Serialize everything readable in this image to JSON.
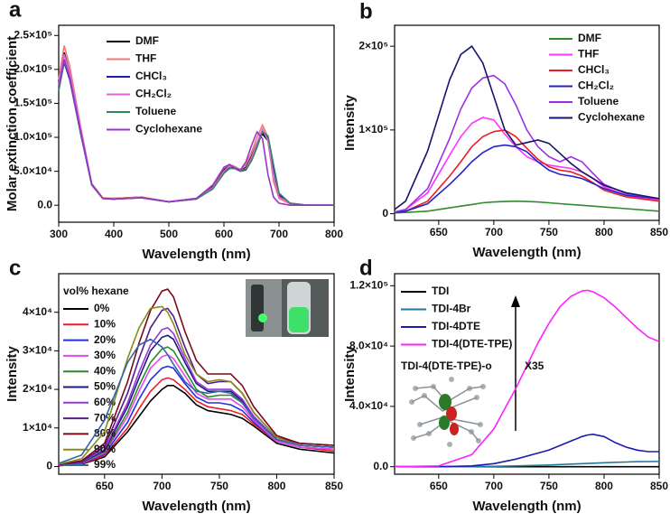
{
  "chart_data": [
    {
      "type": "line",
      "panel": "a",
      "xlabel": "Wavelength (nm)",
      "ylabel": "Molar extinction coefficient",
      "xlim": [
        300,
        800
      ],
      "xticks": [
        300,
        400,
        500,
        600,
        700,
        800
      ],
      "ylim": [
        -25000,
        265000
      ],
      "yticks": [
        {
          "value": 0,
          "label": "0.0"
        },
        {
          "value": 50000,
          "label": "5.0×10⁴"
        },
        {
          "value": 100000,
          "label": "1.0×10⁵"
        },
        {
          "value": 150000,
          "label": "1.5×10⁵"
        },
        {
          "value": 200000,
          "label": "2.0×10⁵"
        },
        {
          "value": 250000,
          "label": "2.5×10⁵"
        }
      ],
      "x": [
        300,
        310,
        320,
        340,
        360,
        380,
        400,
        450,
        500,
        550,
        580,
        600,
        610,
        620,
        630,
        640,
        650,
        660,
        670,
        680,
        690,
        700,
        720,
        750,
        800
      ],
      "series": [
        {
          "name": "DMF",
          "color": "#000000",
          "values": [
            180000,
            225000,
            195000,
            110000,
            30000,
            10000,
            10000,
            12000,
            5000,
            10000,
            28000,
            52000,
            58000,
            55000,
            50000,
            56000,
            72000,
            92000,
            105000,
            95000,
            40000,
            12000,
            3000,
            0,
            0
          ]
        },
        {
          "name": "THF",
          "color": "#f07878",
          "values": [
            185000,
            235000,
            205000,
            115000,
            32000,
            11000,
            10000,
            12000,
            5000,
            10000,
            30000,
            55000,
            60000,
            57000,
            52000,
            60000,
            78000,
            100000,
            118000,
            100000,
            35000,
            10000,
            2000,
            0,
            0
          ]
        },
        {
          "name": "CHCl₃",
          "color": "#1c1ca8",
          "values": [
            170000,
            210000,
            185000,
            105000,
            30000,
            10000,
            9000,
            11000,
            5000,
            9000,
            25000,
            48000,
            55000,
            54000,
            50000,
            52000,
            66000,
            88000,
            108000,
            100000,
            55000,
            15000,
            3000,
            0,
            0
          ]
        },
        {
          "name": "CH₂Cl₂",
          "color": "#e066d6",
          "values": [
            178000,
            222000,
            195000,
            112000,
            31000,
            10000,
            9000,
            11000,
            5000,
            9000,
            26000,
            50000,
            58000,
            56000,
            50000,
            54000,
            70000,
            92000,
            112000,
            95000,
            42000,
            12000,
            3000,
            0,
            0
          ]
        },
        {
          "name": "Toluene",
          "color": "#2e8b57",
          "values": [
            168000,
            212000,
            188000,
            106000,
            30000,
            10000,
            9000,
            11000,
            5000,
            9000,
            24000,
            47000,
            54000,
            54000,
            51000,
            53000,
            65000,
            85000,
            108000,
            102000,
            60000,
            18000,
            3000,
            0,
            0
          ]
        },
        {
          "name": "Cyclohexane",
          "color": "#9933cc",
          "values": [
            175000,
            215000,
            188000,
            108000,
            31000,
            10000,
            9000,
            11000,
            5000,
            10000,
            30000,
            56000,
            60000,
            55000,
            52000,
            64000,
            88000,
            108000,
            98000,
            45000,
            12000,
            3000,
            0,
            0,
            0
          ]
        }
      ]
    },
    {
      "type": "line",
      "panel": "b",
      "xlabel": "Wavelength (nm)",
      "ylabel": "Intensity",
      "xlim": [
        610,
        850
      ],
      "xticks": [
        650,
        700,
        750,
        800,
        850
      ],
      "ylim": [
        -8000,
        225000
      ],
      "yticks": [
        0,
        {
          "value": 100000,
          "label": "1×10⁵"
        },
        {
          "value": 200000,
          "label": "2×10⁵"
        }
      ],
      "x": [
        610,
        620,
        640,
        660,
        670,
        680,
        690,
        700,
        710,
        720,
        730,
        740,
        750,
        760,
        770,
        780,
        790,
        800,
        820,
        850
      ],
      "series": [
        {
          "name": "DMF",
          "color": "#2e8b2e",
          "values": [
            1000,
            1500,
            3000,
            7000,
            9000,
            11000,
            13000,
            14000,
            14500,
            15000,
            14500,
            14000,
            13000,
            12000,
            11000,
            10000,
            9000,
            8000,
            6000,
            3000
          ]
        },
        {
          "name": "THF",
          "color": "#ff33ff",
          "values": [
            2000,
            5000,
            25000,
            70000,
            92000,
            108000,
            115000,
            112000,
            95000,
            80000,
            68000,
            62000,
            58000,
            56000,
            54000,
            50000,
            42000,
            32000,
            22000,
            16000
          ]
        },
        {
          "name": "CHCl₃",
          "color": "#ee1c24",
          "values": [
            1500,
            3000,
            15000,
            45000,
            62000,
            80000,
            92000,
            98000,
            100000,
            92000,
            78000,
            65000,
            56000,
            52000,
            50000,
            45000,
            37000,
            28000,
            20000,
            15000
          ]
        },
        {
          "name": "CH₂Cl₂",
          "color": "#2222cc",
          "values": [
            1500,
            3000,
            12000,
            35000,
            48000,
            62000,
            73000,
            80000,
            82000,
            80000,
            74000,
            62000,
            52000,
            47000,
            45000,
            42000,
            36000,
            30000,
            22000,
            18000
          ]
        },
        {
          "name": "Toluene",
          "color": "#9b30e0",
          "values": [
            2000,
            5000,
            30000,
            90000,
            125000,
            150000,
            162000,
            165000,
            155000,
            130000,
            100000,
            80000,
            68000,
            62000,
            68000,
            62000,
            48000,
            35000,
            24000,
            18000
          ]
        },
        {
          "name": "Cyclohexane",
          "color": "#14146e",
          "values": [
            5000,
            15000,
            75000,
            160000,
            190000,
            200000,
            180000,
            140000,
            100000,
            82000,
            85000,
            88000,
            84000,
            72000,
            60000,
            50000,
            42000,
            34000,
            25000,
            18000
          ]
        }
      ]
    },
    {
      "type": "line",
      "panel": "c",
      "xlabel": "Wavelength (nm)",
      "ylabel": "Intensity",
      "legend_title": "vol% hexane",
      "xlim": [
        610,
        850
      ],
      "xticks": [
        650,
        700,
        750,
        800,
        850
      ],
      "ylim": [
        -2000,
        50000
      ],
      "yticks": [
        0,
        {
          "value": 10000,
          "label": "1×10⁴"
        },
        {
          "value": 20000,
          "label": "2×10⁴"
        },
        {
          "value": 30000,
          "label": "3×10⁴"
        },
        {
          "value": 40000,
          "label": "4×10⁴"
        }
      ],
      "x": [
        610,
        630,
        650,
        670,
        680,
        690,
        700,
        705,
        710,
        720,
        730,
        740,
        750,
        760,
        770,
        780,
        800,
        820,
        850
      ],
      "series": [
        {
          "name": "0%",
          "color": "#000000",
          "values": [
            200,
            600,
            2500,
            9000,
            13000,
            17000,
            20000,
            21000,
            21000,
            19000,
            16000,
            14500,
            14000,
            13500,
            12500,
            10500,
            6000,
            4500,
            3500
          ]
        },
        {
          "name": "10%",
          "color": "#ee1c24",
          "values": [
            200,
            700,
            2800,
            10000,
            15000,
            19500,
            22500,
            23000,
            22500,
            20000,
            17000,
            15500,
            15000,
            14500,
            13500,
            11000,
            6500,
            5000,
            4000
          ]
        },
        {
          "name": "20%",
          "color": "#2233dd",
          "values": [
            250,
            800,
            3200,
            11500,
            17500,
            22500,
            25500,
            26000,
            25500,
            21500,
            18000,
            16500,
            16500,
            16000,
            14500,
            11500,
            6500,
            5000,
            4500
          ]
        },
        {
          "name": "30%",
          "color": "#ee44ee",
          "values": [
            300,
            900,
            3500,
            13000,
            19500,
            25500,
            28500,
            29000,
            28000,
            23500,
            19000,
            17500,
            17500,
            17500,
            15500,
            12000,
            6500,
            5000,
            4500
          ]
        },
        {
          "name": "40%",
          "color": "#2a8a2a",
          "values": [
            300,
            1000,
            3800,
            14000,
            21000,
            27000,
            30500,
            31000,
            30000,
            25000,
            20000,
            18000,
            18500,
            18500,
            16500,
            12500,
            7000,
            5500,
            5000
          ]
        },
        {
          "name": "50%",
          "color": "#1a1a80",
          "values": [
            350,
            1100,
            4200,
            15500,
            23000,
            30000,
            33500,
            34000,
            33000,
            27000,
            21500,
            19500,
            19500,
            19500,
            17000,
            13000,
            7000,
            5500,
            5000
          ]
        },
        {
          "name": "60%",
          "color": "#9a33dd",
          "values": [
            400,
            1200,
            4500,
            16500,
            24500,
            31500,
            35500,
            36000,
            34500,
            28000,
            22000,
            20000,
            20000,
            20000,
            17500,
            13000,
            7000,
            5500,
            5000
          ]
        },
        {
          "name": "70%",
          "color": "#551a8b",
          "values": [
            450,
            1300,
            5200,
            19000,
            28000,
            36000,
            40500,
            41000,
            39000,
            31000,
            24000,
            21500,
            22000,
            22000,
            19000,
            14000,
            7500,
            6000,
            5500
          ]
        },
        {
          "name": "80%",
          "color": "#7a0a1a",
          "values": [
            500,
            1500,
            6000,
            22000,
            32000,
            40500,
            45500,
            46000,
            44000,
            35000,
            27500,
            24000,
            24000,
            24000,
            21000,
            15500,
            8000,
            6000,
            5500
          ]
        },
        {
          "name": "90%",
          "color": "#8a8a1a",
          "values": [
            600,
            2000,
            9000,
            28000,
            36000,
            41000,
            41500,
            40000,
            37000,
            29000,
            24000,
            22000,
            22500,
            22000,
            19000,
            14000,
            7500,
            5500,
            5000
          ]
        },
        {
          "name": "99%",
          "color": "#3366aa",
          "values": [
            800,
            3000,
            12000,
            27000,
            31500,
            33000,
            31000,
            29000,
            26500,
            22000,
            19500,
            19000,
            19500,
            19000,
            16500,
            12500,
            7000,
            5500,
            5000
          ]
        }
      ]
    },
    {
      "type": "line",
      "panel": "d",
      "xlabel": "Wavelength (nm)",
      "ylabel": "Intensity",
      "annotation": "X35",
      "inset_label": "TDI-4(DTE-TPE)-o",
      "xlim": [
        610,
        850
      ],
      "xticks": [
        650,
        700,
        750,
        800,
        850
      ],
      "ylim": [
        -5000,
        128000
      ],
      "yticks": [
        {
          "value": 0,
          "label": "0.0"
        },
        {
          "value": 40000,
          "label": "4.0×10⁴"
        },
        {
          "value": 80000,
          "label": "8.0×10⁴"
        },
        {
          "value": 120000,
          "label": "1.2×10⁵"
        }
      ],
      "x": [
        610,
        650,
        680,
        700,
        720,
        740,
        750,
        760,
        770,
        780,
        785,
        790,
        800,
        810,
        820,
        830,
        840,
        850
      ],
      "series": [
        {
          "name": "TDI",
          "color": "#000000",
          "values": [
            0,
            0,
            0,
            0,
            0,
            0,
            0,
            0,
            0,
            0,
            0,
            0,
            0,
            0,
            0,
            0,
            0,
            0
          ]
        },
        {
          "name": "TDI-4Br",
          "color": "#1f7a9a",
          "values": [
            0,
            0,
            0,
            200,
            500,
            900,
            1100,
            1400,
            1700,
            2000,
            2100,
            2300,
            2600,
            2900,
            3100,
            3300,
            3400,
            3500
          ]
        },
        {
          "name": "TDI-4DTE",
          "color": "#1a1ab0",
          "values": [
            0,
            0,
            500,
            2000,
            5000,
            9000,
            11000,
            14000,
            17000,
            20000,
            21000,
            21500,
            20000,
            16000,
            13000,
            11000,
            10000,
            10000
          ]
        },
        {
          "name": "TDI-4(DTE-TPE)",
          "color": "#ff22ff",
          "values": [
            0,
            500,
            8000,
            25000,
            52000,
            82000,
            95000,
            106000,
            113000,
            116500,
            117000,
            116000,
            112000,
            106000,
            99000,
            92000,
            86000,
            83000
          ]
        }
      ]
    }
  ]
}
